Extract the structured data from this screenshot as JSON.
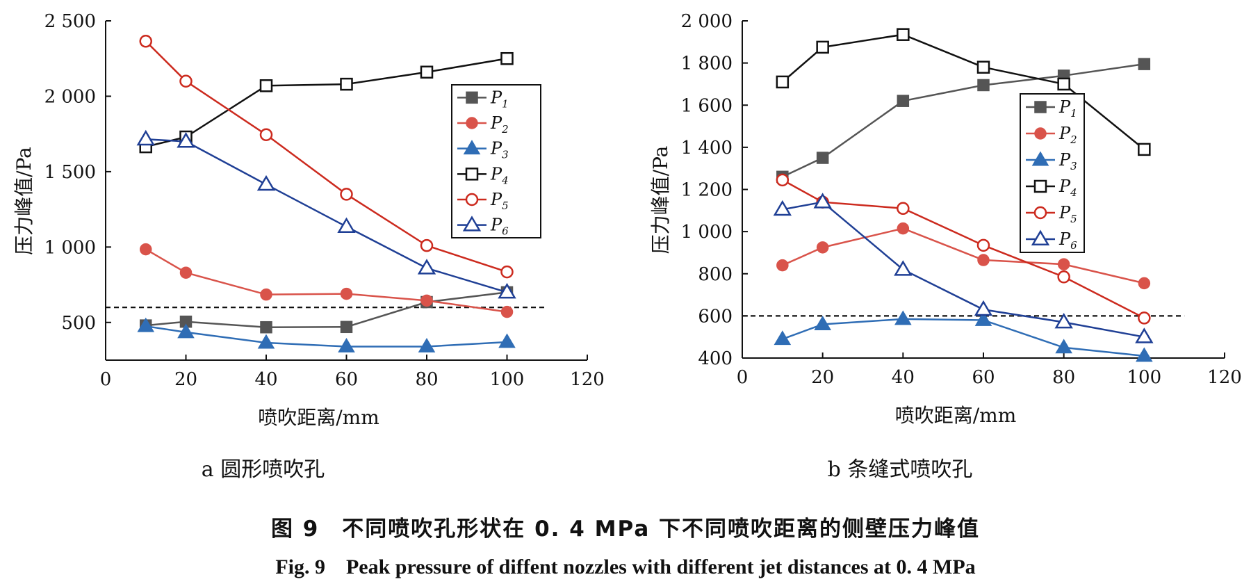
{
  "chart_data": [
    {
      "type": "line",
      "title": "a 圆形喷吹孔",
      "xlabel": "喷吹距离/mm",
      "ylabel": "压力峰值/Pa",
      "xlim": [
        0,
        120
      ],
      "ylim": [
        250,
        2500
      ],
      "xticks": [
        0,
        20,
        40,
        60,
        80,
        100,
        120
      ],
      "xtick_labels": [
        "0",
        "20",
        "40",
        "60",
        "80",
        "100",
        "120"
      ],
      "yticks": [
        500,
        1000,
        1500,
        2000,
        2500
      ],
      "ytick_labels": [
        "500",
        "1 000",
        "1 500",
        "2 000",
        "2 500"
      ],
      "reference_line": {
        "y": 600,
        "x_range": [
          0,
          110
        ],
        "style": "dashed"
      },
      "legend_position": "right",
      "x": [
        10,
        20,
        40,
        60,
        80,
        100
      ],
      "series": [
        {
          "name": "P1",
          "label_main": "P",
          "label_sub": "1",
          "color": "#555555",
          "marker": "square-filled",
          "values": [
            480,
            505,
            468,
            470,
            635,
            700
          ]
        },
        {
          "name": "P2",
          "label_main": "P",
          "label_sub": "2",
          "color": "#d9534a",
          "marker": "circle-filled",
          "values": [
            985,
            830,
            685,
            690,
            645,
            570
          ]
        },
        {
          "name": "P3",
          "label_main": "P",
          "label_sub": "3",
          "color": "#2f6db5",
          "marker": "triangle-filled",
          "values": [
            475,
            435,
            365,
            340,
            340,
            370
          ]
        },
        {
          "name": "P4",
          "label_main": "P",
          "label_sub": "4",
          "color": "#111111",
          "marker": "square-open",
          "values": [
            1665,
            1730,
            2070,
            2080,
            2160,
            2250
          ]
        },
        {
          "name": "P5",
          "label_main": "P",
          "label_sub": "5",
          "color": "#cc2a1e",
          "marker": "circle-open",
          "values": [
            2365,
            2100,
            1745,
            1350,
            1010,
            835
          ]
        },
        {
          "name": "P6",
          "label_main": "P",
          "label_sub": "6",
          "color": "#1f3f95",
          "marker": "triangle-open",
          "values": [
            1715,
            1700,
            1415,
            1135,
            860,
            700
          ]
        }
      ]
    },
    {
      "type": "line",
      "title": "b 条缝式喷吹孔",
      "xlabel": "喷吹距离/mm",
      "ylabel": "压力峰值/Pa",
      "xlim": [
        0,
        120
      ],
      "ylim": [
        400,
        2000
      ],
      "xticks": [
        0,
        20,
        40,
        60,
        80,
        100,
        120
      ],
      "xtick_labels": [
        "0",
        "20",
        "40",
        "60",
        "80",
        "100",
        "120"
      ],
      "yticks": [
        400,
        600,
        800,
        1000,
        1200,
        1400,
        1600,
        1800,
        2000
      ],
      "ytick_labels": [
        "400",
        "600",
        "800",
        "1 000",
        "1 200",
        "1 400",
        "1 600",
        "1 800",
        "2 000"
      ],
      "reference_line": {
        "y": 600,
        "x_range": [
          0,
          110
        ],
        "style": "dashed"
      },
      "legend_position": "center-right",
      "x": [
        10,
        20,
        40,
        60,
        80,
        100
      ],
      "series": [
        {
          "name": "P1",
          "label_main": "P",
          "label_sub": "1",
          "color": "#555555",
          "marker": "square-filled",
          "values": [
            1260,
            1350,
            1620,
            1695,
            1740,
            1795
          ]
        },
        {
          "name": "P2",
          "label_main": "P",
          "label_sub": "2",
          "color": "#d9534a",
          "marker": "circle-filled",
          "values": [
            840,
            925,
            1015,
            865,
            845,
            755
          ]
        },
        {
          "name": "P3",
          "label_main": "P",
          "label_sub": "3",
          "color": "#2f6db5",
          "marker": "triangle-filled",
          "values": [
            490,
            560,
            585,
            580,
            450,
            410
          ]
        },
        {
          "name": "P4",
          "label_main": "P",
          "label_sub": "4",
          "color": "#111111",
          "marker": "square-open",
          "values": [
            1710,
            1875,
            1935,
            1780,
            1700,
            1390
          ]
        },
        {
          "name": "P5",
          "label_main": "P",
          "label_sub": "5",
          "color": "#cc2a1e",
          "marker": "circle-open",
          "values": [
            1245,
            1140,
            1110,
            935,
            785,
            590
          ]
        },
        {
          "name": "P6",
          "label_main": "P",
          "label_sub": "6",
          "color": "#1f3f95",
          "marker": "triangle-open",
          "values": [
            1105,
            1140,
            820,
            630,
            570,
            500
          ]
        }
      ]
    }
  ],
  "caption": {
    "cn": "图 9　不同喷吹孔形状在 0. 4 MPa 下不同喷吹距离的侧壁压力峰值",
    "en": "Fig. 9　Peak pressure of diffent nozzles with different jet distances at 0. 4 MPa"
  }
}
